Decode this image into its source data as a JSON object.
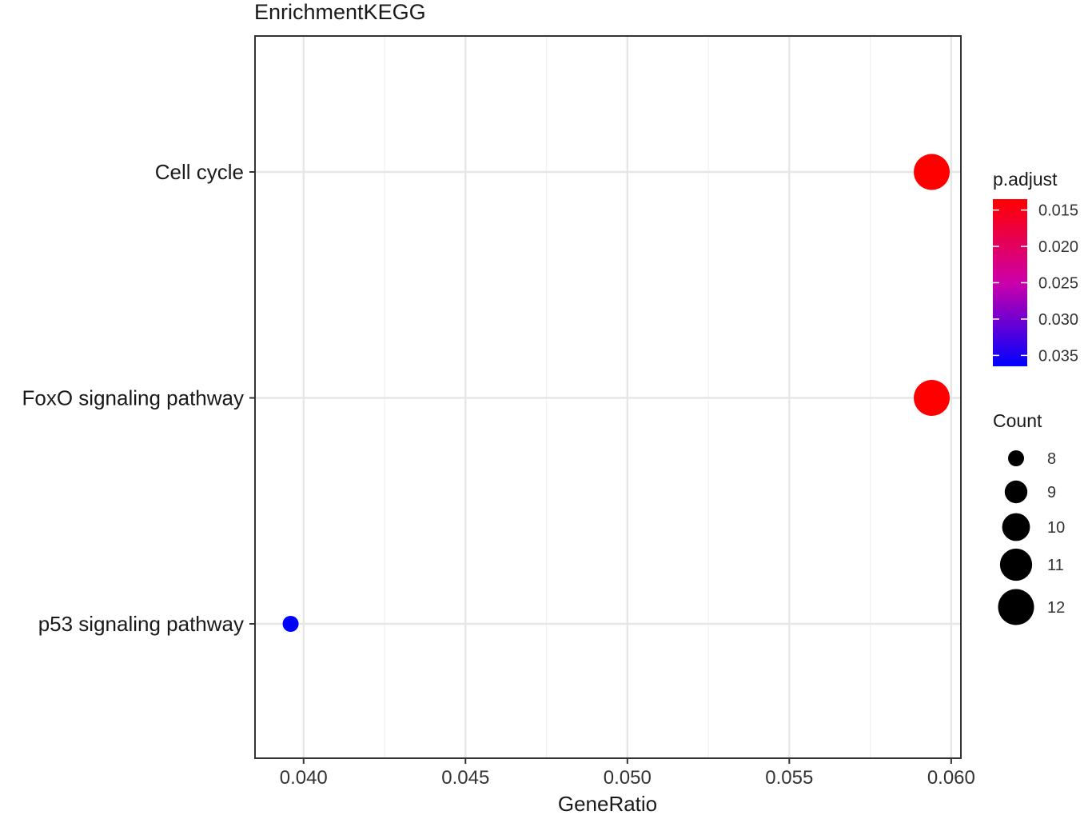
{
  "chart_data": {
    "type": "scatter",
    "title": "EnrichmentKEGG",
    "xlabel": "GeneRatio",
    "ylabel": "",
    "xlim": [
      0.0385,
      0.0603
    ],
    "xticks": [
      0.04,
      0.045,
      0.05,
      0.055,
      0.06
    ],
    "xtick_labels": [
      "0.040",
      "0.045",
      "0.050",
      "0.055",
      "0.060"
    ],
    "categories": [
      "p53 signaling pathway",
      "FoxO signaling pathway",
      "Cell cycle"
    ],
    "points": [
      {
        "category": "Cell cycle",
        "x": 0.0594,
        "count": 12,
        "p_adjust": 0.0135
      },
      {
        "category": "FoxO signaling pathway",
        "x": 0.0594,
        "count": 12,
        "p_adjust": 0.0135
      },
      {
        "category": "p53 signaling pathway",
        "x": 0.0396,
        "count": 8,
        "p_adjust": 0.0365
      }
    ],
    "grid": true,
    "color_legend": {
      "title": "p.adjust",
      "low_color": "#ff0000",
      "high_color": "#0000ff",
      "range": [
        0.0135,
        0.0365
      ],
      "ticks": [
        0.015,
        0.02,
        0.025,
        0.03,
        0.035
      ],
      "tick_labels": [
        "0.015",
        "0.020",
        "0.025",
        "0.030",
        "0.035"
      ]
    },
    "size_legend": {
      "title": "Count",
      "values": [
        8,
        9,
        10,
        11,
        12
      ],
      "labels": [
        "8",
        "9",
        "10",
        "11",
        "12"
      ]
    },
    "legend_position": "right"
  }
}
